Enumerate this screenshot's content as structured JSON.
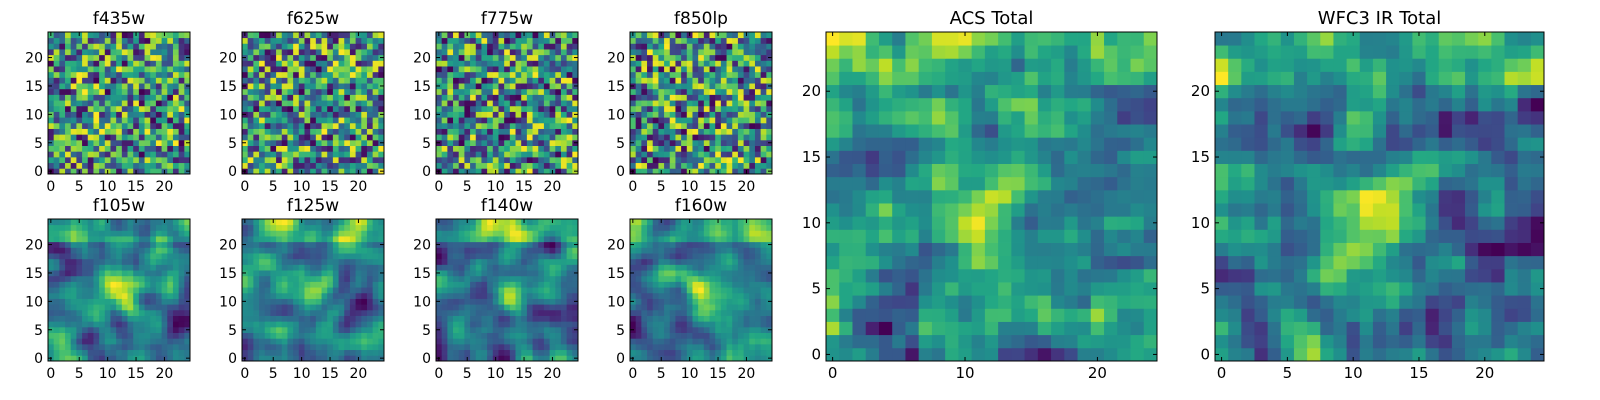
{
  "figure": {
    "description_free": true
  },
  "chart_data": [
    {
      "type": "heatmap",
      "title": "f435w",
      "grid_size": 25,
      "xticks": [
        0,
        5,
        10,
        15,
        20
      ],
      "yticks": [
        0,
        5,
        10,
        15,
        20
      ],
      "xlim": [
        -0.5,
        24.5
      ],
      "ylim": [
        -0.5,
        24.5
      ],
      "colormap": "viridis",
      "value_range": [
        0,
        1
      ],
      "texture": "noise",
      "seed": 11
    },
    {
      "type": "heatmap",
      "title": "f625w",
      "grid_size": 25,
      "xticks": [
        0,
        5,
        10,
        15,
        20
      ],
      "yticks": [
        0,
        5,
        10,
        15,
        20
      ],
      "xlim": [
        -0.5,
        24.5
      ],
      "ylim": [
        -0.5,
        24.5
      ],
      "colormap": "viridis",
      "value_range": [
        0,
        1
      ],
      "texture": "noise",
      "seed": 23
    },
    {
      "type": "heatmap",
      "title": "f775w",
      "grid_size": 25,
      "xticks": [
        0,
        5,
        10,
        15,
        20
      ],
      "yticks": [
        0,
        5,
        10,
        15,
        20
      ],
      "xlim": [
        -0.5,
        24.5
      ],
      "ylim": [
        -0.5,
        24.5
      ],
      "colormap": "viridis",
      "value_range": [
        0,
        1
      ],
      "texture": "noise",
      "seed": 37
    },
    {
      "type": "heatmap",
      "title": "f850lp",
      "grid_size": 25,
      "xticks": [
        0,
        5,
        10,
        15,
        20
      ],
      "yticks": [
        0,
        5,
        10,
        15,
        20
      ],
      "xlim": [
        -0.5,
        24.5
      ],
      "ylim": [
        -0.5,
        24.5
      ],
      "colormap": "viridis",
      "value_range": [
        0,
        1
      ],
      "texture": "noise",
      "seed": 41
    },
    {
      "type": "heatmap",
      "title": "f105w",
      "grid_size": 25,
      "xticks": [
        0,
        5,
        10,
        15,
        20
      ],
      "yticks": [
        0,
        5,
        10,
        15,
        20
      ],
      "xlim": [
        -0.5,
        24.5
      ],
      "ylim": [
        -0.5,
        24.5
      ],
      "colormap": "viridis",
      "value_range": [
        0,
        1
      ],
      "texture": "smooth",
      "seed": 53
    },
    {
      "type": "heatmap",
      "title": "f125w",
      "grid_size": 25,
      "xticks": [
        0,
        5,
        10,
        15,
        20
      ],
      "yticks": [
        0,
        5,
        10,
        15,
        20
      ],
      "xlim": [
        -0.5,
        24.5
      ],
      "ylim": [
        -0.5,
        24.5
      ],
      "colormap": "viridis",
      "value_range": [
        0,
        1
      ],
      "texture": "smooth",
      "seed": 67
    },
    {
      "type": "heatmap",
      "title": "f140w",
      "grid_size": 25,
      "xticks": [
        0,
        5,
        10,
        15,
        20
      ],
      "yticks": [
        0,
        5,
        10,
        15,
        20
      ],
      "xlim": [
        -0.5,
        24.5
      ],
      "ylim": [
        -0.5,
        24.5
      ],
      "colormap": "viridis",
      "value_range": [
        0,
        1
      ],
      "texture": "smooth",
      "seed": 79
    },
    {
      "type": "heatmap",
      "title": "f160w",
      "grid_size": 25,
      "xticks": [
        0,
        5,
        10,
        15,
        20
      ],
      "yticks": [
        0,
        5,
        10,
        15,
        20
      ],
      "xlim": [
        -0.5,
        24.5
      ],
      "ylim": [
        -0.5,
        24.5
      ],
      "colormap": "viridis",
      "value_range": [
        0,
        1
      ],
      "texture": "smooth",
      "seed": 83
    },
    {
      "type": "heatmap",
      "title": "ACS Total",
      "grid_size": 25,
      "xticks": [
        0,
        10,
        20
      ],
      "yticks": [
        0,
        5,
        10,
        15,
        20
      ],
      "xlim": [
        -0.5,
        24.5
      ],
      "ylim": [
        -0.5,
        24.5
      ],
      "colormap": "viridis",
      "value_range": [
        0,
        1
      ],
      "texture": "blend",
      "seed": 97
    },
    {
      "type": "heatmap",
      "title": "WFC3 IR Total",
      "grid_size": 25,
      "xticks": [
        0,
        5,
        10,
        15,
        20
      ],
      "yticks": [
        0,
        5,
        10,
        15,
        20
      ],
      "xlim": [
        -0.5,
        24.5
      ],
      "ylim": [
        -0.5,
        24.5
      ],
      "colormap": "viridis",
      "value_range": [
        0,
        1
      ],
      "texture": "blend",
      "seed": 101
    }
  ]
}
